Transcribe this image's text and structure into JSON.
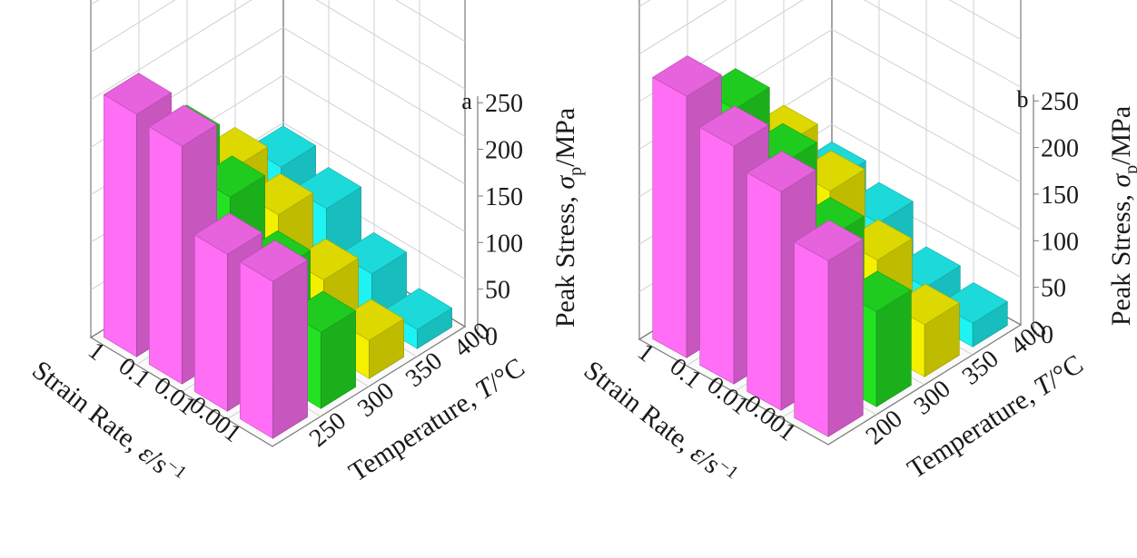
{
  "colors": {
    "cyan": "#1ff2f2",
    "yellow": "#f4f000",
    "green": "#22e222",
    "magenta": "#ff6ef5",
    "frame": "#7a7a7a",
    "grid": "#d0d0d0"
  },
  "chart_data": [
    {
      "type": "bar3d",
      "panel_label": "a",
      "strain_rates": [
        "1",
        "0.1",
        "0.01",
        "0.001"
      ],
      "temperatures": [
        "250",
        "300",
        "350",
        "400"
      ],
      "series": [
        {
          "temperature": "400",
          "color_key": "cyan",
          "values": [
            105,
            90,
            50,
            20
          ]
        },
        {
          "temperature": "350",
          "color_key": "yellow",
          "values": [
            135,
            115,
            75,
            40
          ]
        },
        {
          "temperature": "300",
          "color_key": "green",
          "values": [
            190,
            165,
            115,
            80
          ]
        },
        {
          "temperature": "250",
          "color_key": "magenta",
          "values": [
            255,
            250,
            165,
            165
          ]
        }
      ],
      "zlim": [
        0,
        250
      ],
      "zticks": [
        "0",
        "50",
        "100",
        "150",
        "200",
        "250"
      ],
      "xlabel_prefix": "Strain Rate, ",
      "xlabel_symbol": "ε̇",
      "xlabel_unit": "/s",
      "xlabel_sup": "−1",
      "ylabel_prefix": "Temperature, ",
      "ylabel_symbol": "T",
      "ylabel_unit": "/°C",
      "zlabel_prefix": "Peak Stress, ",
      "zlabel_symbol": "σ",
      "zlabel_sub": "p",
      "zlabel_unit": "/MPa"
    },
    {
      "type": "bar3d",
      "panel_label": "b",
      "strain_rates": [
        "1",
        "0.1",
        "0.01",
        "0.001"
      ],
      "temperatures": [
        "200",
        "300",
        "350",
        "400"
      ],
      "series": [
        {
          "temperature": "400",
          "color_key": "cyan",
          "values": [
            90,
            75,
            35,
            25
          ]
        },
        {
          "temperature": "350",
          "color_key": "yellow",
          "values": [
            160,
            140,
            95,
            55
          ]
        },
        {
          "temperature": "300",
          "color_key": "green",
          "values": [
            230,
            200,
            150,
            100
          ]
        },
        {
          "temperature": "200",
          "color_key": "magenta",
          "values": [
            275,
            250,
            230,
            185
          ]
        }
      ],
      "zlim": [
        0,
        250
      ],
      "zticks": [
        "0",
        "50",
        "100",
        "150",
        "200",
        "250"
      ],
      "xlabel_prefix": "Strain Rate, ",
      "xlabel_symbol": "ε̇",
      "xlabel_unit": "/s",
      "xlabel_sup": "−1",
      "ylabel_prefix": "Temperature, ",
      "ylabel_symbol": "T",
      "ylabel_unit": "/°C",
      "zlabel_prefix": "Peak Stress, ",
      "zlabel_symbol": "σ",
      "zlabel_sub": "p",
      "zlabel_unit": "/MPa"
    }
  ]
}
